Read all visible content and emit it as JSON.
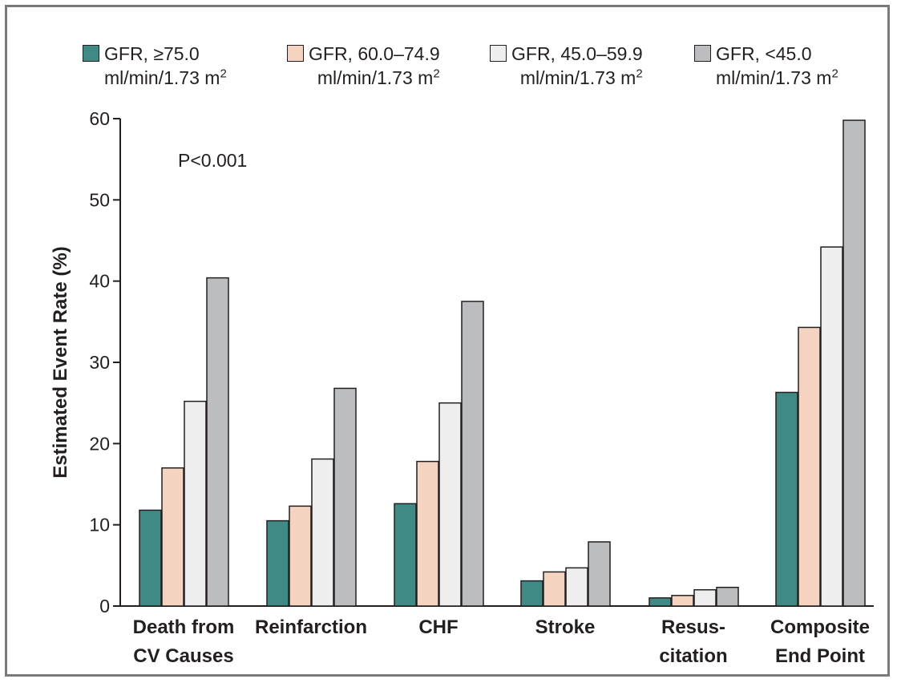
{
  "chart_data": {
    "type": "bar",
    "title": "",
    "xlabel": "",
    "ylabel": "Estimated Event Rate (%)",
    "ylim": [
      0,
      60
    ],
    "yticks": [
      "0",
      "10",
      "20",
      "30",
      "40",
      "50",
      "60"
    ],
    "grid": false,
    "legend_position": "top",
    "annotation": "P<0.001",
    "categories": [
      [
        "Death from",
        "CV Causes"
      ],
      [
        "Reinfarction"
      ],
      [
        "CHF"
      ],
      [
        "Stroke"
      ],
      [
        "Resus-",
        "citation"
      ],
      [
        "Composite",
        "End Point"
      ]
    ],
    "series": [
      {
        "name": "GFR, ≥75.0 ml/min/1.73 m²",
        "line1": "GFR, ≥75.0",
        "line2": "ml/min/1.73 m",
        "sup": "2",
        "color": "#3f8a85",
        "values": [
          11.8,
          10.5,
          12.6,
          3.1,
          1.0,
          26.3
        ]
      },
      {
        "name": "GFR, 60.0–74.9 ml/min/1.73 m²",
        "line1": "GFR, 60.0–74.9",
        "line2": "ml/min/1.73 m",
        "sup": "2",
        "color": "#f5d3c1",
        "values": [
          17.0,
          12.3,
          17.8,
          4.2,
          1.3,
          34.3
        ]
      },
      {
        "name": "GFR, 45.0–59.9 ml/min/1.73 m²",
        "line1": "GFR, 45.0–59.9",
        "line2": "ml/min/1.73 m",
        "sup": "2",
        "color": "#eeeeef",
        "values": [
          25.2,
          18.1,
          25.0,
          4.7,
          2.0,
          44.2
        ]
      },
      {
        "name": "GFR, <45.0 ml/min/1.73 m²",
        "line1": "GFR, <45.0",
        "line2": "ml/min/1.73 m",
        "sup": "2",
        "color": "#bcbdbf",
        "values": [
          40.4,
          26.8,
          37.5,
          7.9,
          2.3,
          59.8
        ]
      }
    ]
  }
}
